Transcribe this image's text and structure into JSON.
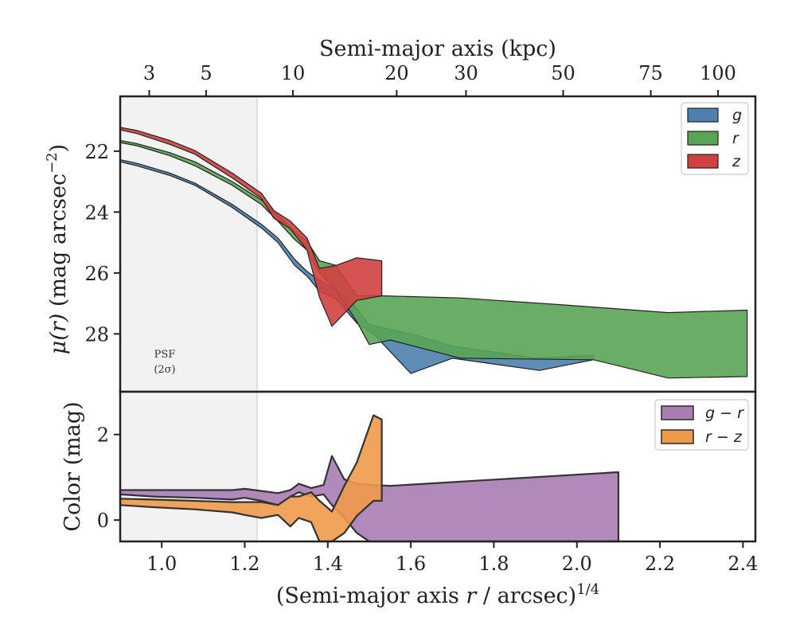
{
  "chart_data": {
    "type": "area",
    "x_axis": {
      "label_main": "(Semi-major axis ",
      "label_var": "r",
      "label_unit": " / arcsec)",
      "label_exp": "1/4",
      "range": [
        0.9,
        2.43
      ],
      "ticks": [
        "1.0",
        "1.2",
        "1.4",
        "1.6",
        "1.8",
        "2.0",
        "2.2",
        "2.4"
      ]
    },
    "top_axis": {
      "label": "Semi-major axis (kpc)",
      "ticks": [
        {
          "label": "3",
          "x": 0.97
        },
        {
          "label": "5",
          "x": 1.107
        },
        {
          "label": "10",
          "x": 1.316
        },
        {
          "label": "20",
          "x": 1.566
        },
        {
          "label": "30",
          "x": 1.733
        },
        {
          "label": "50",
          "x": 1.967
        },
        {
          "label": "75",
          "x": 2.178
        },
        {
          "label": "100",
          "x": 2.34
        }
      ]
    },
    "psf_region": {
      "x_max": 1.23,
      "label_line1": "PSF",
      "label_line2": "(2σ)"
    },
    "top_panel": {
      "ylabel_var": "μ(r)",
      "ylabel_unit": " (mag arcsec",
      "ylabel_exp": "−2",
      "ylabel_close": ")",
      "ylim_top": 20.2,
      "ylim_bottom": 29.9,
      "y_ticks": [
        "22",
        "24",
        "26",
        "28"
      ],
      "y_tick_values": [
        22,
        24,
        26,
        28
      ],
      "series": [
        {
          "name": "g",
          "color": "#4e7fae",
          "upper": [
            [
              0.9,
              22.28
            ],
            [
              0.94,
              22.4
            ],
            [
              1.02,
              22.72
            ],
            [
              1.08,
              23.05
            ],
            [
              1.17,
              23.75
            ],
            [
              1.24,
              24.4
            ],
            [
              1.28,
              24.85
            ],
            [
              1.32,
              25.55
            ],
            [
              1.35,
              25.95
            ],
            [
              1.38,
              26.25
            ],
            [
              1.42,
              26.55
            ],
            [
              1.46,
              27.0
            ],
            [
              1.5,
              27.7
            ],
            [
              1.6,
              28.0
            ],
            [
              1.7,
              28.4
            ],
            [
              1.9,
              28.8
            ],
            [
              2.04,
              28.7
            ]
          ],
          "lower": [
            [
              0.9,
              22.35
            ],
            [
              0.94,
              22.48
            ],
            [
              1.02,
              22.8
            ],
            [
              1.08,
              23.12
            ],
            [
              1.17,
              23.85
            ],
            [
              1.24,
              24.52
            ],
            [
              1.28,
              25.0
            ],
            [
              1.32,
              25.75
            ],
            [
              1.35,
              26.1
            ],
            [
              1.38,
              26.6
            ],
            [
              1.42,
              26.85
            ],
            [
              1.47,
              27.65
            ],
            [
              1.51,
              28.0
            ],
            [
              1.6,
              29.3
            ],
            [
              1.7,
              28.8
            ],
            [
              1.91,
              29.2
            ],
            [
              2.04,
              28.85
            ]
          ]
        },
        {
          "name": "r",
          "color": "#5aa457",
          "upper": [
            [
              0.9,
              21.65
            ],
            [
              0.94,
              21.75
            ],
            [
              1.02,
              22.05
            ],
            [
              1.08,
              22.35
            ],
            [
              1.17,
              23.0
            ],
            [
              1.24,
              23.6
            ],
            [
              1.28,
              24.1
            ],
            [
              1.32,
              24.65
            ],
            [
              1.35,
              24.95
            ],
            [
              1.38,
              25.6
            ],
            [
              1.42,
              25.75
            ],
            [
              1.47,
              26.75
            ],
            [
              1.53,
              26.75
            ],
            [
              1.72,
              26.82
            ],
            [
              1.97,
              27.05
            ],
            [
              2.22,
              27.3
            ],
            [
              2.41,
              27.22
            ]
          ],
          "lower": [
            [
              0.9,
              21.72
            ],
            [
              0.94,
              21.82
            ],
            [
              1.02,
              22.15
            ],
            [
              1.08,
              22.48
            ],
            [
              1.17,
              23.12
            ],
            [
              1.24,
              23.75
            ],
            [
              1.28,
              24.3
            ],
            [
              1.32,
              24.9
            ],
            [
              1.35,
              25.25
            ],
            [
              1.38,
              26.0
            ],
            [
              1.42,
              26.55
            ],
            [
              1.47,
              27.6
            ],
            [
              1.5,
              28.35
            ],
            [
              1.55,
              28.2
            ],
            [
              1.72,
              28.8
            ],
            [
              2.04,
              28.85
            ],
            [
              2.22,
              29.45
            ],
            [
              2.41,
              29.4
            ]
          ]
        },
        {
          "name": "z",
          "color": "#d0413f",
          "upper": [
            [
              0.9,
              21.22
            ],
            [
              0.94,
              21.32
            ],
            [
              1.02,
              21.65
            ],
            [
              1.08,
              21.98
            ],
            [
              1.17,
              22.72
            ],
            [
              1.24,
              23.38
            ],
            [
              1.27,
              23.95
            ],
            [
              1.31,
              24.3
            ],
            [
              1.35,
              24.85
            ],
            [
              1.38,
              25.85
            ],
            [
              1.42,
              25.75
            ],
            [
              1.47,
              25.5
            ],
            [
              1.53,
              25.6
            ]
          ],
          "lower": [
            [
              0.9,
              21.3
            ],
            [
              0.94,
              21.42
            ],
            [
              1.02,
              21.78
            ],
            [
              1.08,
              22.1
            ],
            [
              1.17,
              22.88
            ],
            [
              1.24,
              23.55
            ],
            [
              1.27,
              24.2
            ],
            [
              1.31,
              24.55
            ],
            [
              1.35,
              25.25
            ],
            [
              1.38,
              26.8
            ],
            [
              1.41,
              27.75
            ],
            [
              1.47,
              26.9
            ],
            [
              1.53,
              26.75
            ]
          ]
        }
      ]
    },
    "bottom_panel": {
      "ylabel": "Color (mag)",
      "ylim_top": 3.0,
      "ylim_bottom": -0.5,
      "y_ticks": [
        "0",
        "2"
      ],
      "y_tick_values": [
        0,
        2
      ],
      "series": [
        {
          "name": "g − r",
          "legend_a": "g",
          "legend_op": " − ",
          "legend_b": "r",
          "color": "#a97cb2",
          "upper": [
            [
              0.9,
              0.7
            ],
            [
              0.98,
              0.7
            ],
            [
              1.08,
              0.7
            ],
            [
              1.17,
              0.7
            ],
            [
              1.2,
              0.73
            ],
            [
              1.24,
              0.68
            ],
            [
              1.28,
              0.63
            ],
            [
              1.31,
              0.7
            ],
            [
              1.33,
              0.85
            ],
            [
              1.36,
              0.75
            ],
            [
              1.39,
              0.82
            ],
            [
              1.41,
              1.5
            ],
            [
              1.44,
              0.95
            ],
            [
              1.47,
              0.85
            ],
            [
              1.51,
              0.82
            ],
            [
              1.55,
              0.8
            ],
            [
              2.1,
              1.12
            ]
          ],
          "lower": [
            [
              0.9,
              0.6
            ],
            [
              0.98,
              0.55
            ],
            [
              1.08,
              0.52
            ],
            [
              1.17,
              0.48
            ],
            [
              1.2,
              0.52
            ],
            [
              1.24,
              0.45
            ],
            [
              1.28,
              0.35
            ],
            [
              1.31,
              0.55
            ],
            [
              1.33,
              0.65
            ],
            [
              1.36,
              0.55
            ],
            [
              1.39,
              0.6
            ],
            [
              1.41,
              0.35
            ],
            [
              1.44,
              0.05
            ],
            [
              1.47,
              -0.3
            ],
            [
              1.5,
              -0.5
            ],
            [
              2.1,
              -0.5
            ]
          ]
        },
        {
          "name": "r − z",
          "legend_a": "r",
          "legend_op": " − ",
          "legend_b": "z",
          "color": "#ef9a4a",
          "upper": [
            [
              0.9,
              0.5
            ],
            [
              0.98,
              0.48
            ],
            [
              1.08,
              0.45
            ],
            [
              1.17,
              0.42
            ],
            [
              1.2,
              0.42
            ],
            [
              1.24,
              0.42
            ],
            [
              1.28,
              0.35
            ],
            [
              1.31,
              0.55
            ],
            [
              1.33,
              0.55
            ],
            [
              1.36,
              0.65
            ],
            [
              1.38,
              0.45
            ],
            [
              1.41,
              0.2
            ],
            [
              1.44,
              0.8
            ],
            [
              1.47,
              1.35
            ],
            [
              1.51,
              2.45
            ],
            [
              1.53,
              2.35
            ]
          ],
          "lower": [
            [
              0.9,
              0.35
            ],
            [
              0.98,
              0.3
            ],
            [
              1.08,
              0.25
            ],
            [
              1.17,
              0.18
            ],
            [
              1.2,
              0.12
            ],
            [
              1.24,
              0.05
            ],
            [
              1.28,
              0.12
            ],
            [
              1.31,
              -0.15
            ],
            [
              1.33,
              0.05
            ],
            [
              1.36,
              -0.05
            ],
            [
              1.38,
              -0.5
            ],
            [
              1.41,
              -0.5
            ],
            [
              1.44,
              -0.3
            ],
            [
              1.47,
              0.1
            ],
            [
              1.51,
              0.45
            ],
            [
              1.53,
              0.45
            ]
          ]
        }
      ]
    }
  }
}
